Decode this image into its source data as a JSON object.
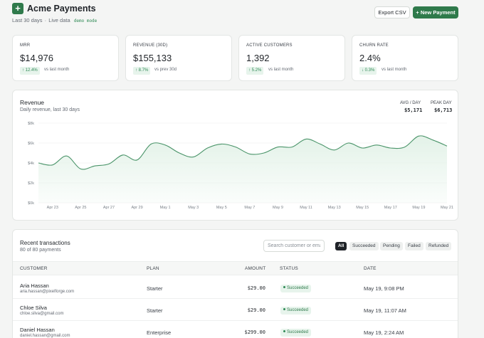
{
  "header": {
    "logo_symbol": "+",
    "title": "Acme Payments",
    "subtitle_range": "Last 30 days",
    "subtitle_sep": "·",
    "subtitle_mode": "Live data",
    "demo_badge": "demo mode",
    "export_label": "Export CSV",
    "new_payment_label": "+ New Payment"
  },
  "kpis": [
    {
      "label": "MRR",
      "value": "$14,976",
      "delta": "↑ 12.4%",
      "note": "vs last month"
    },
    {
      "label": "Revenue (30d)",
      "value": "$155,133",
      "delta": "↑ 8.7%",
      "note": "vs prev 30d"
    },
    {
      "label": "Active customers",
      "value": "1,392",
      "delta": "↑ 5.2%",
      "note": "vs last month"
    },
    {
      "label": "Churn rate",
      "value": "2.4%",
      "delta": "↓ 0.3%",
      "note": "vs last month"
    }
  ],
  "revenue": {
    "title": "Revenue",
    "subtitle": "Daily revenue, last 30 days",
    "avg_label": "AVG / DAY",
    "avg_value": "$5,171",
    "peak_label": "PEAK DAY",
    "peak_value": "$6,713"
  },
  "chart_data": {
    "type": "area",
    "title": "Revenue",
    "subtitle": "Daily revenue, last 30 days",
    "y_ticks": [
      "$0k",
      "$2k",
      "$4k",
      "$6k",
      "$8k"
    ],
    "ylim": [
      0,
      8000
    ],
    "x_ticks": [
      "Apr 23",
      "Apr 25",
      "Apr 27",
      "Apr 29",
      "May 1",
      "May 3",
      "May 5",
      "May 7",
      "May 9",
      "May 11",
      "May 13",
      "May 15",
      "May 17",
      "May 19",
      "May 21"
    ],
    "x": [
      "Apr 22",
      "Apr 23",
      "Apr 24",
      "Apr 25",
      "Apr 26",
      "Apr 27",
      "Apr 28",
      "Apr 29",
      "Apr 30",
      "May 1",
      "May 2",
      "May 3",
      "May 4",
      "May 5",
      "May 6",
      "May 7",
      "May 8",
      "May 9",
      "May 10",
      "May 11",
      "May 12",
      "May 13",
      "May 14",
      "May 15",
      "May 16",
      "May 17",
      "May 18",
      "May 19",
      "May 20",
      "May 21"
    ],
    "values": [
      4000,
      3800,
      4700,
      3400,
      3700,
      3900,
      4800,
      4300,
      5900,
      5800,
      5000,
      4600,
      5500,
      5900,
      5600,
      4900,
      5000,
      5600,
      5600,
      6400,
      5900,
      5300,
      6000,
      5500,
      5800,
      5500,
      5600,
      6700,
      6300,
      5700
    ],
    "grid": true,
    "legend": "none",
    "line_color": "#4a9469",
    "fill_color": "#e3f2e8"
  },
  "transactions": {
    "title": "Recent transactions",
    "subtitle": "80 of 80 payments",
    "search_placeholder": "Search customer or email…",
    "filters": [
      "All",
      "Succeeded",
      "Pending",
      "Failed",
      "Refunded"
    ],
    "columns": {
      "customer": "Customer",
      "plan": "Plan",
      "amount": "Amount",
      "status": "Status",
      "date": "Date"
    },
    "rows": [
      {
        "name": "Aria Hassan",
        "email": "aria.hassan@pixelforge.com",
        "plan": "Starter",
        "amount": "$29.00",
        "status": "Succeeded",
        "date": "May 19, 9:08 PM"
      },
      {
        "name": "Chloe Silva",
        "email": "chloe.silva@gmail.com",
        "plan": "Starter",
        "amount": "$29.00",
        "status": "Succeeded",
        "date": "May 19, 11:07 AM"
      },
      {
        "name": "Daniel Hassan",
        "email": "daniel.hassan@gmail.com",
        "plan": "Enterprise",
        "amount": "$299.00",
        "status": "Succeeded",
        "date": "May 19, 2:24 AM"
      }
    ]
  },
  "colors": {
    "accent": "#2f7a4b",
    "success_bg": "#e7f4ec",
    "success_text": "#2f8a55"
  }
}
